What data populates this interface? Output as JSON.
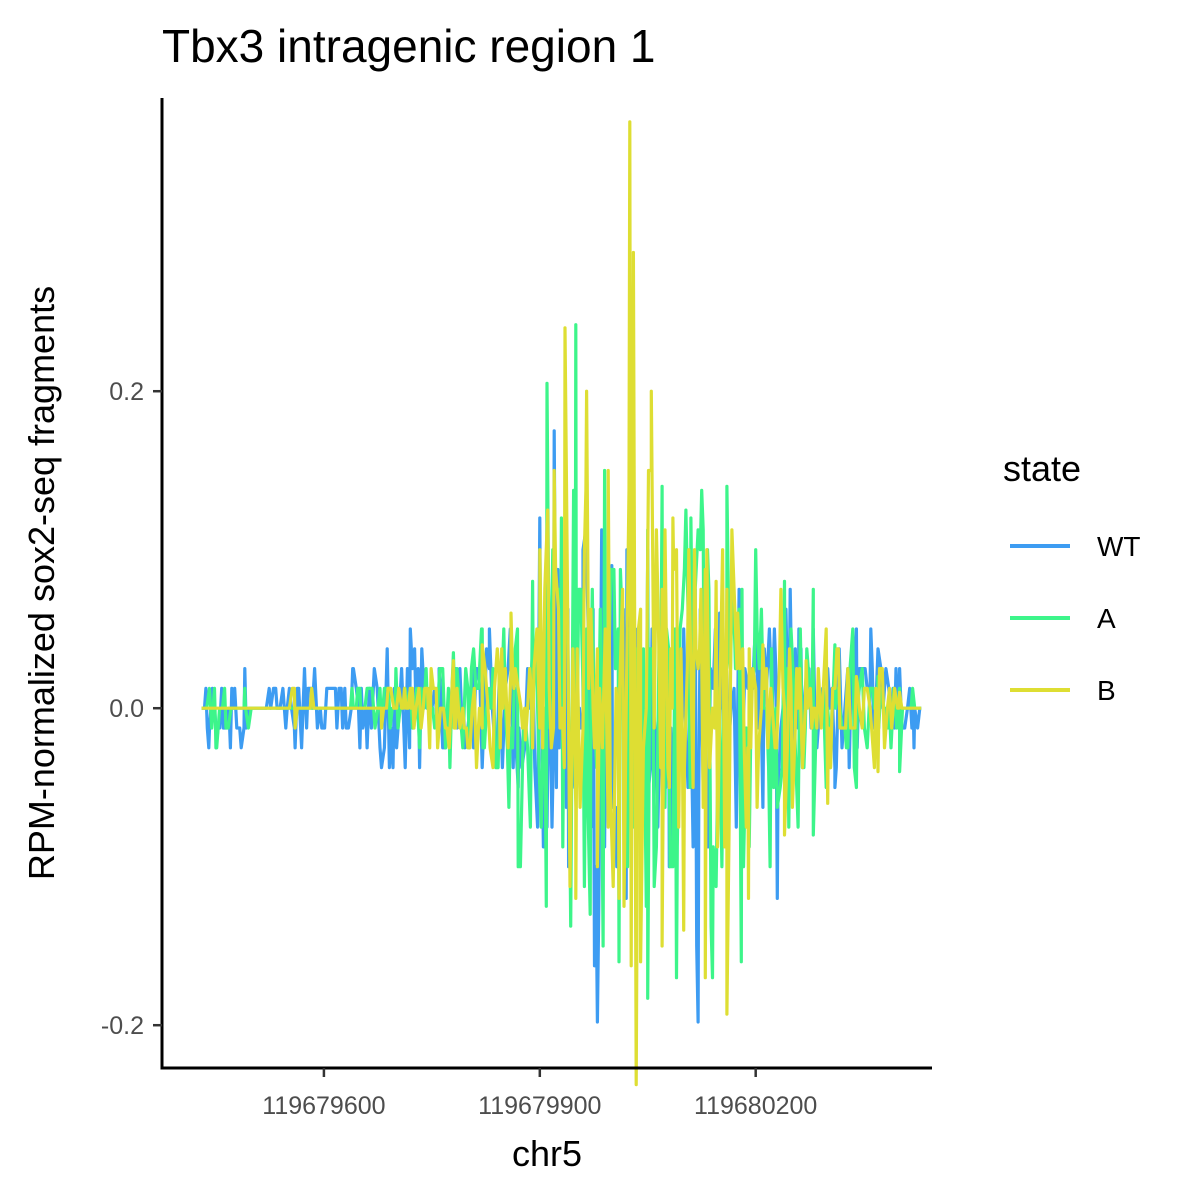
{
  "chart_data": {
    "type": "line",
    "title": "Tbx3 intragenic region 1",
    "xlabel": "chr5",
    "ylabel": "RPM-normalized sox2-seq fragments",
    "xlim": [
      119679375,
      119680445
    ],
    "ylim": [
      -0.227,
      0.385
    ],
    "x_ticks": [
      119679600,
      119679900,
      119680200
    ],
    "x_tick_labels": [
      "119679600",
      "119679900",
      "119680200"
    ],
    "y_ticks": [
      -0.2,
      0.0,
      0.2
    ],
    "y_tick_labels": [
      "-0.2",
      "0.0",
      "0.2"
    ],
    "grid": false,
    "legend": {
      "title": "state",
      "position": "right"
    },
    "x_range": [
      119679430,
      119680430
    ],
    "series": [
      {
        "name": "WT",
        "color": "#3d9cf2",
        "peak_max": 0.175,
        "peak_min": -0.198,
        "anchors": [
          [
            119679430,
            0.0
          ],
          [
            119679440,
            -0.025
          ],
          [
            119679450,
            -0.025
          ],
          [
            119679470,
            -0.025
          ],
          [
            119679490,
            0.025
          ],
          [
            119679500,
            0.0
          ],
          [
            119679560,
            -0.025
          ],
          [
            119679640,
            0.025
          ],
          [
            119679650,
            -0.025
          ],
          [
            119679720,
            0.05
          ],
          [
            119679760,
            0.025
          ],
          [
            119679830,
            0.05
          ],
          [
            119679870,
            -0.05
          ],
          [
            119679900,
            0.12
          ],
          [
            119679920,
            0.175
          ],
          [
            119679940,
            -0.1
          ],
          [
            119679960,
            0.1
          ],
          [
            119679980,
            -0.198
          ],
          [
            119680000,
            0.09
          ],
          [
            119680020,
            -0.12
          ],
          [
            119680050,
            0.1
          ],
          [
            119680080,
            -0.1
          ],
          [
            119680100,
            0.05
          ],
          [
            119680120,
            -0.198
          ],
          [
            119680150,
            0.06
          ],
          [
            119680180,
            -0.1
          ],
          [
            119680200,
            0.05
          ],
          [
            119680230,
            -0.12
          ],
          [
            119680260,
            0.05
          ],
          [
            119680280,
            0.05
          ],
          [
            119680310,
            -0.05
          ],
          [
            119680340,
            0.05
          ],
          [
            119680360,
            0.05
          ],
          [
            119680400,
            0.025
          ],
          [
            119680420,
            -0.025
          ],
          [
            119680430,
            0.0
          ]
        ]
      },
      {
        "name": "A",
        "color": "#3df58a",
        "peak_max": 0.242,
        "peak_min": -0.183,
        "anchors": [
          [
            119679430,
            0.0
          ],
          [
            119679450,
            -0.025
          ],
          [
            119679480,
            0.0
          ],
          [
            119679490,
            0.0125
          ],
          [
            119679520,
            0.0
          ],
          [
            119679600,
            0.0
          ],
          [
            119679650,
            0.0125
          ],
          [
            119679700,
            0.025
          ],
          [
            119679780,
            0.035
          ],
          [
            119679820,
            0.05
          ],
          [
            119679850,
            0.05
          ],
          [
            119679870,
            -0.1
          ],
          [
            119679890,
            0.08
          ],
          [
            119679910,
            0.205
          ],
          [
            119679930,
            0.12
          ],
          [
            119679950,
            0.242
          ],
          [
            119679970,
            -0.13
          ],
          [
            119679990,
            0.15
          ],
          [
            119680010,
            -0.16
          ],
          [
            119680030,
            0.17
          ],
          [
            119680050,
            -0.183
          ],
          [
            119680070,
            0.14
          ],
          [
            119680090,
            -0.17
          ],
          [
            119680110,
            0.12
          ],
          [
            119680140,
            -0.17
          ],
          [
            119680160,
            0.14
          ],
          [
            119680180,
            -0.16
          ],
          [
            119680200,
            0.1
          ],
          [
            119680220,
            -0.1
          ],
          [
            119680240,
            0.08
          ],
          [
            119680280,
            -0.08
          ],
          [
            119680310,
            0.04
          ],
          [
            119680340,
            -0.05
          ],
          [
            119680370,
            0.02
          ],
          [
            119680400,
            -0.04
          ],
          [
            119680430,
            0.0
          ]
        ]
      },
      {
        "name": "B",
        "color": "#dede33",
        "peak_max": 0.37,
        "peak_min": -0.193,
        "anchors": [
          [
            119679430,
            0.0
          ],
          [
            119679500,
            0.0
          ],
          [
            119679560,
            -0.0125
          ],
          [
            119679620,
            0.0
          ],
          [
            119679680,
            -0.0125
          ],
          [
            119679720,
            0.0125
          ],
          [
            119679780,
            0.03
          ],
          [
            119679820,
            0.04
          ],
          [
            119679860,
            0.06
          ],
          [
            119679880,
            -0.02
          ],
          [
            119679900,
            0.1
          ],
          [
            119679920,
            0.15
          ],
          [
            119679935,
            0.24
          ],
          [
            119679950,
            -0.12
          ],
          [
            119679965,
            0.2
          ],
          [
            119679980,
            -0.1
          ],
          [
            119679995,
            0.15
          ],
          [
            119680010,
            -0.12
          ],
          [
            119680025,
            0.37
          ],
          [
            119680040,
            -0.16
          ],
          [
            119680055,
            0.2
          ],
          [
            119680070,
            -0.15
          ],
          [
            119680085,
            0.12
          ],
          [
            119680100,
            -0.14
          ],
          [
            119680115,
            0.1
          ],
          [
            119680130,
            -0.17
          ],
          [
            119680145,
            0.08
          ],
          [
            119680160,
            -0.193
          ],
          [
            119680175,
            0.06
          ],
          [
            119680190,
            -0.12
          ],
          [
            119680210,
            0.04
          ],
          [
            119680240,
            -0.08
          ],
          [
            119680270,
            0.03
          ],
          [
            119680300,
            -0.06
          ],
          [
            119680340,
            0.02
          ],
          [
            119680370,
            -0.04
          ],
          [
            119680400,
            0.01
          ],
          [
            119680430,
            0.0
          ]
        ]
      }
    ]
  }
}
